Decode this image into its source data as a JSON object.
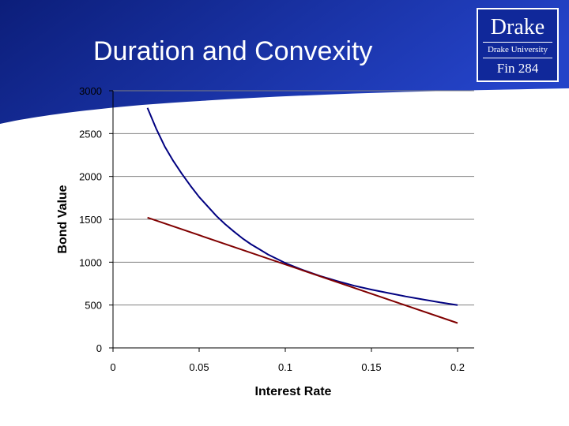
{
  "slide": {
    "title": "Duration and Convexity"
  },
  "logo": {
    "name": "Drake",
    "subtitle": "Drake University",
    "course": "Fin 284"
  },
  "colors": {
    "banner_dark": "#0c1e7a",
    "banner_light": "#2443c8",
    "bond_value_curve": "#000080",
    "duration_line": "#800000",
    "gridline": "#808080"
  },
  "chart_data": {
    "type": "line",
    "xlabel": "Interest Rate",
    "ylabel": "Bond Value",
    "xlim": [
      0,
      0.2
    ],
    "ylim": [
      0,
      3000
    ],
    "x_ticks": [
      "0",
      "0.05",
      "0.1",
      "0.15",
      "0.2"
    ],
    "y_ticks": [
      "0",
      "500",
      "1000",
      "1500",
      "2000",
      "2500",
      "3000"
    ],
    "grid": "horizontal",
    "legend": "none",
    "series": [
      {
        "key": "bond_value",
        "x": [
          0.02,
          0.025,
          0.03,
          0.035,
          0.04,
          0.045,
          0.05,
          0.055,
          0.06,
          0.065,
          0.07,
          0.075,
          0.08,
          0.085,
          0.09,
          0.095,
          0.1,
          0.11,
          0.12,
          0.13,
          0.14,
          0.15,
          0.16,
          0.17,
          0.18,
          0.19,
          0.2
        ],
        "y": [
          2800,
          2560,
          2350,
          2180,
          2030,
          1890,
          1760,
          1650,
          1540,
          1445,
          1360,
          1280,
          1210,
          1150,
          1090,
          1040,
          990,
          910,
          840,
          780,
          725,
          680,
          640,
          600,
          565,
          530,
          500
        ]
      },
      {
        "key": "duration_tangent",
        "x": [
          0.02,
          0.2
        ],
        "y": [
          1520,
          290
        ]
      }
    ]
  }
}
